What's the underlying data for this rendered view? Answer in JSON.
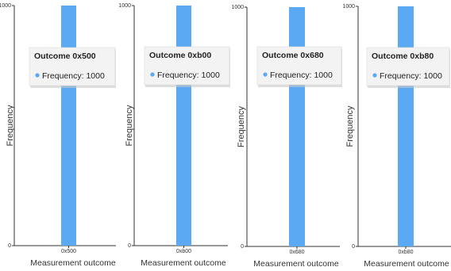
{
  "chart_data": [
    {
      "type": "bar",
      "categories": [
        "0x500"
      ],
      "values": [
        1000
      ],
      "ylabel": "Frequency",
      "xlabel": "Measurement outcome",
      "ylim": [
        0,
        1000
      ],
      "yticks": [
        "0",
        "1000"
      ],
      "bar_color": "#5aa9f2",
      "tooltip": {
        "title": "Outcome 0x500",
        "text": "Frequency: 1000"
      }
    },
    {
      "type": "bar",
      "categories": [
        "0xb00"
      ],
      "values": [
        1000
      ],
      "ylabel": "Frequency",
      "xlabel": "Measurement outcome",
      "ylim": [
        0,
        1000
      ],
      "yticks": [
        "0",
        "1000"
      ],
      "bar_color": "#5aa9f2",
      "tooltip": {
        "title": "Outcome 0xb00",
        "text": "Frequency: 1000"
      }
    },
    {
      "type": "bar",
      "categories": [
        "0x680"
      ],
      "values": [
        1000
      ],
      "ylabel": "Frequency",
      "xlabel": "Measurement outcome",
      "ylim": [
        0,
        1000
      ],
      "yticks": [
        "0",
        "1000"
      ],
      "bar_color": "#5aa9f2",
      "tooltip": {
        "title": "Outcome 0x680",
        "text": "Frequency: 1000"
      }
    },
    {
      "type": "bar",
      "categories": [
        "0xb80"
      ],
      "values": [
        1000
      ],
      "ylabel": "Frequency",
      "xlabel": "Measurement outcome",
      "ylim": [
        0,
        1000
      ],
      "yticks": [
        "0",
        "1000"
      ],
      "bar_color": "#5aa9f2",
      "tooltip": {
        "title": "Outcome 0xb80",
        "text": "Frequency: 1000"
      }
    }
  ]
}
